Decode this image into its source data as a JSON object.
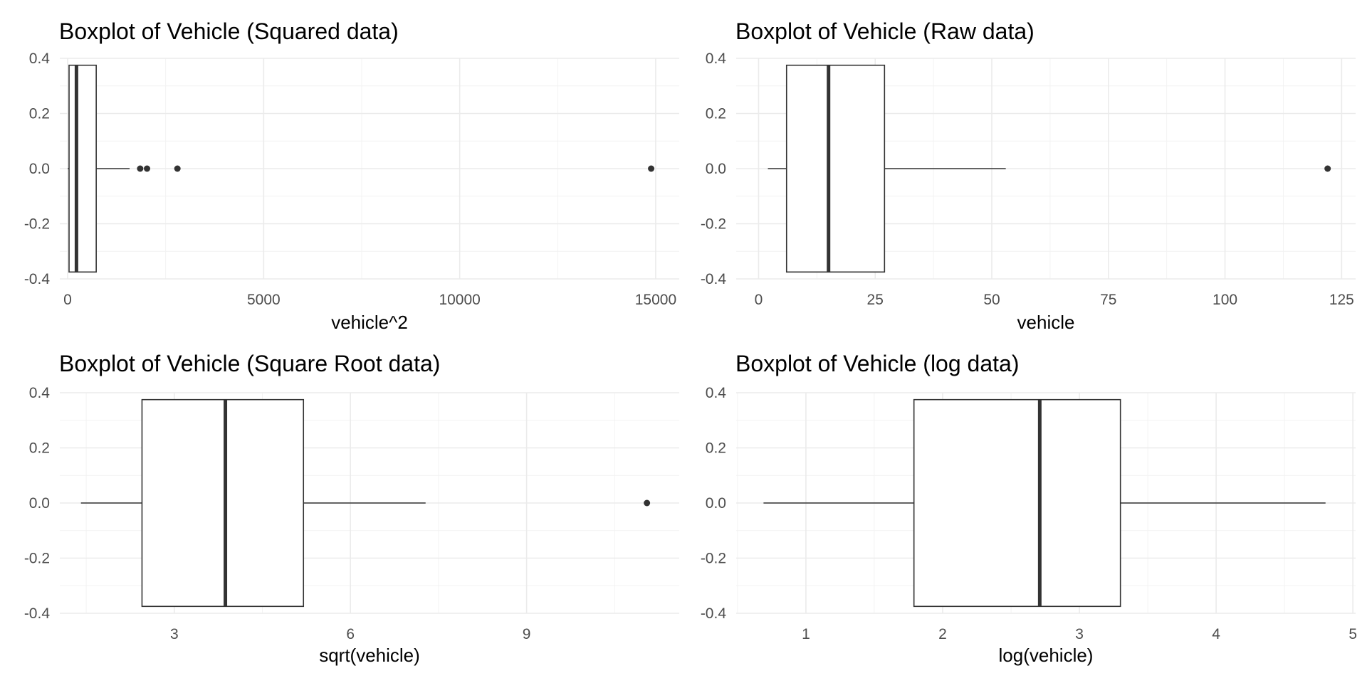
{
  "chart_data": [
    {
      "type": "boxplot",
      "title": "Boxplot of Vehicle (Squared data)",
      "xlabel": "vehicle^2",
      "ylabel": "",
      "xlim": [
        -200,
        15600
      ],
      "ylim": [
        -0.4,
        0.4
      ],
      "x_ticks": [
        0,
        5000,
        10000,
        15000
      ],
      "x_tick_labels": [
        "0",
        "5000",
        "10000",
        "15000"
      ],
      "y_ticks": [
        0.4,
        0.2,
        0.0,
        -0.2,
        -0.4
      ],
      "y_tick_labels": [
        "0.4",
        "0.2",
        "0.0",
        "-0.2",
        "-0.4"
      ],
      "box": {
        "whisker_low": 4,
        "q1": 36,
        "median": 225,
        "q3": 729,
        "whisker_high": 1580,
        "y_extent": [
          -0.375,
          0.375
        ]
      },
      "outliers": [
        1850,
        2025,
        2800,
        14884
      ],
      "grid": true
    },
    {
      "type": "boxplot",
      "title": "Boxplot of Vehicle (Raw data)",
      "xlabel": "vehicle",
      "ylabel": "",
      "xlim": [
        -4.8,
        128
      ],
      "ylim": [
        -0.4,
        0.4
      ],
      "x_ticks": [
        0,
        25,
        50,
        75,
        100,
        125
      ],
      "x_tick_labels": [
        "0",
        "25",
        "50",
        "75",
        "100",
        "125"
      ],
      "y_ticks": [
        0.4,
        0.2,
        0.0,
        -0.2,
        -0.4
      ],
      "y_tick_labels": [
        "0.4",
        "0.2",
        "0.0",
        "-0.2",
        "-0.4"
      ],
      "box": {
        "whisker_low": 2,
        "q1": 6,
        "median": 15,
        "q3": 27,
        "whisker_high": 53,
        "y_extent": [
          -0.375,
          0.375
        ]
      },
      "outliers": [
        122
      ],
      "grid": true
    },
    {
      "type": "boxplot",
      "title": "Boxplot of Vehicle (Square Root data)",
      "xlabel": "sqrt(vehicle)",
      "ylabel": "",
      "xlim": [
        1.05,
        11.6
      ],
      "ylim": [
        -0.4,
        0.4
      ],
      "x_ticks": [
        3,
        6,
        9
      ],
      "x_tick_labels": [
        "3",
        "6",
        "9"
      ],
      "y_ticks": [
        0.4,
        0.2,
        0.0,
        -0.2,
        -0.4
      ],
      "y_tick_labels": [
        "0.4",
        "0.2",
        "0.0",
        "-0.2",
        "-0.4"
      ],
      "box": {
        "whisker_low": 1.41,
        "q1": 2.45,
        "median": 3.87,
        "q3": 5.2,
        "whisker_high": 7.28,
        "y_extent": [
          -0.375,
          0.375
        ]
      },
      "outliers": [
        11.05
      ],
      "grid": true
    },
    {
      "type": "boxplot",
      "title": "Boxplot of Vehicle (log data)",
      "xlabel": "log(vehicle)",
      "ylabel": "",
      "xlim": [
        0.49,
        5.02
      ],
      "ylim": [
        -0.4,
        0.4
      ],
      "x_ticks": [
        1,
        2,
        3,
        4,
        5
      ],
      "x_tick_labels": [
        "1",
        "2",
        "3",
        "4",
        "5"
      ],
      "y_ticks": [
        0.4,
        0.2,
        0.0,
        -0.2,
        -0.4
      ],
      "y_tick_labels": [
        "0.4",
        "0.2",
        "0.0",
        "-0.2",
        "-0.4"
      ],
      "box": {
        "whisker_low": 0.69,
        "q1": 1.79,
        "median": 2.71,
        "q3": 3.3,
        "whisker_high": 4.8,
        "y_extent": [
          -0.375,
          0.375
        ]
      },
      "outliers": [],
      "grid": true
    }
  ],
  "colors": {
    "background": "#ffffff",
    "grid_major": "#ebebeb",
    "grid_minor": "#f2f2f2",
    "box_stroke": "#333333",
    "box_fill": "#ffffff",
    "outlier": "#333333",
    "tick_text": "#4d4d4d",
    "title_text": "#000000"
  }
}
